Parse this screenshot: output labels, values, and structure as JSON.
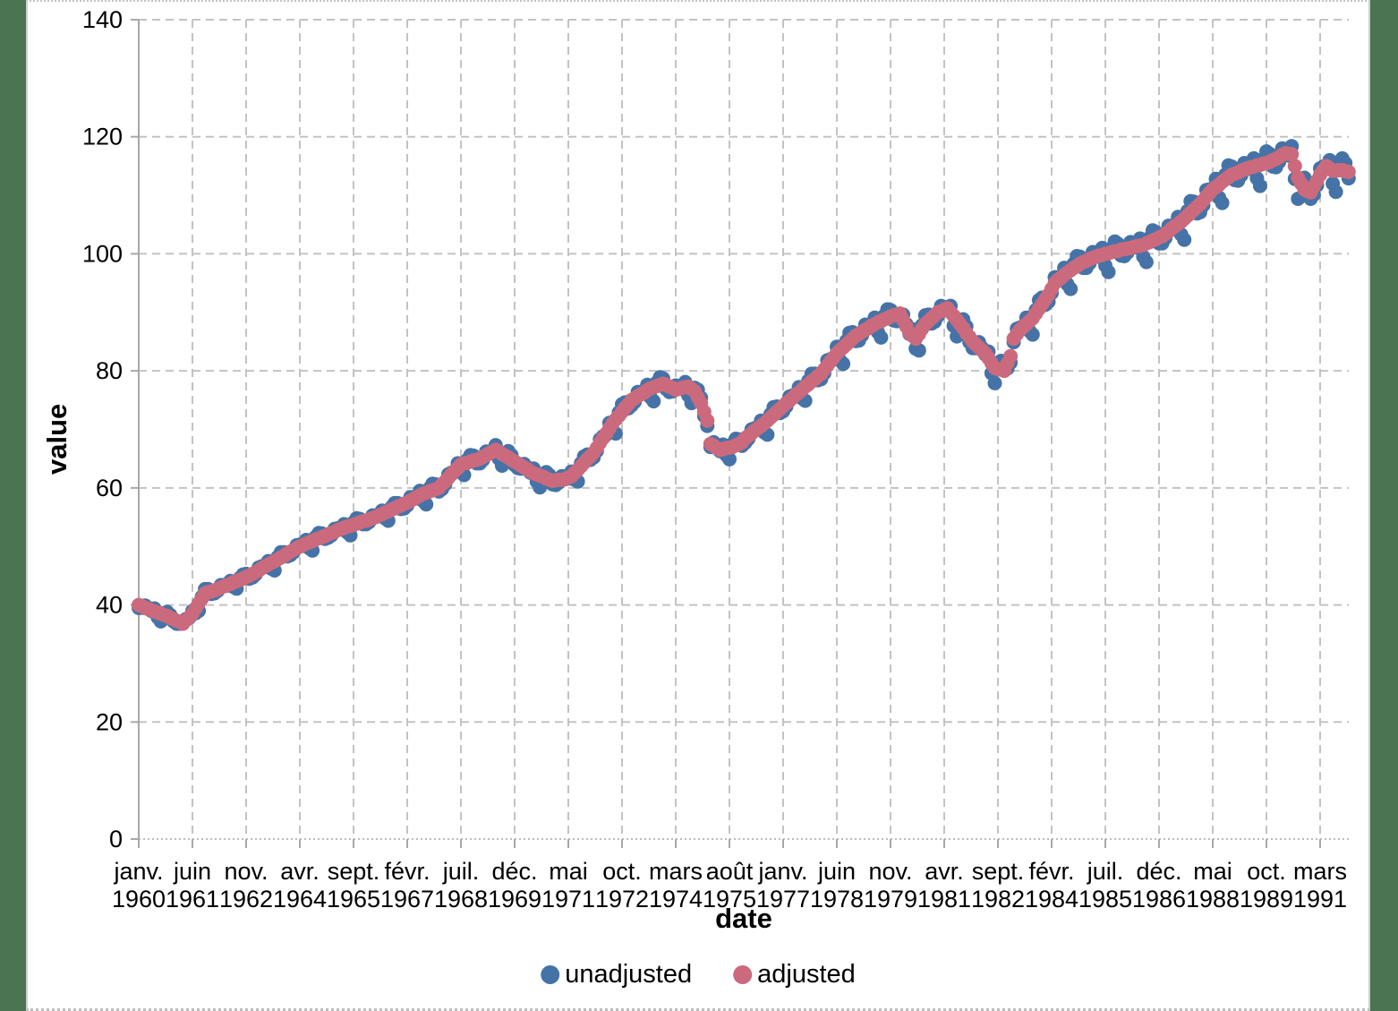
{
  "axes": {
    "ylabel": "value",
    "xlabel": "date"
  },
  "legend": {
    "items": [
      {
        "label": "unadjusted",
        "color": "#4573a7"
      },
      {
        "label": "adjusted",
        "color": "#ca6a7c"
      }
    ]
  },
  "colors": {
    "background_margin": "#4a7452",
    "panel": "#ffffff",
    "gridline": "#c3c3c3",
    "axis_line": "#a8a8a8",
    "unadjusted": "#4573a7",
    "adjusted": "#ca6a7c"
  },
  "chart_data": {
    "type": "scatter",
    "title": "",
    "xlabel": "date",
    "ylabel": "value",
    "x_start": "1960-01",
    "x_end": "1991-12",
    "x_frequency": "monthly",
    "x_tick_interval_months": 17,
    "x_tick_labels": [
      [
        "janv.",
        "1960"
      ],
      [
        "juin",
        "1961"
      ],
      [
        "nov.",
        "1962"
      ],
      [
        "avr.",
        "1964"
      ],
      [
        "sept.",
        "1965"
      ],
      [
        "févr.",
        "1967"
      ],
      [
        "juil.",
        "1968"
      ],
      [
        "déc.",
        "1969"
      ],
      [
        "mai",
        "1971"
      ],
      [
        "oct.",
        "1972"
      ],
      [
        "mars",
        "1974"
      ],
      [
        "août",
        "1975"
      ],
      [
        "janv.",
        "1977"
      ],
      [
        "juin",
        "1978"
      ],
      [
        "nov.",
        "1979"
      ],
      [
        "avr.",
        "1981"
      ],
      [
        "sept.",
        "1982"
      ],
      [
        "févr.",
        "1984"
      ],
      [
        "juil.",
        "1985"
      ],
      [
        "déc.",
        "1986"
      ],
      [
        "mai",
        "1988"
      ],
      [
        "oct.",
        "1989"
      ],
      [
        "mars",
        "1991"
      ]
    ],
    "ylim": [
      0,
      140
    ],
    "y_ticks": [
      0,
      20,
      40,
      60,
      80,
      100,
      120,
      140
    ],
    "grid": true,
    "legend_position": "bottom",
    "marker": "circle",
    "series": [
      {
        "name": "unadjusted",
        "color": "#4573a7",
        "values": [
          39.5,
          39.5,
          39.9,
          39.5,
          39.0,
          39.4,
          37.9,
          37.2,
          38.6,
          38.8,
          38.3,
          37.2,
          36.8,
          36.8,
          37.2,
          37.6,
          37.8,
          39.0,
          38.6,
          39.0,
          41.4,
          42.7,
          42.7,
          41.9,
          42.0,
          42.4,
          43.4,
          43.4,
          43.3,
          44.1,
          43.1,
          42.8,
          44.6,
          45.2,
          45.3,
          44.5,
          44.7,
          45.2,
          46.4,
          46.6,
          46.5,
          47.5,
          46.2,
          45.9,
          48.2,
          49.0,
          49.0,
          48.3,
          48.5,
          49.0,
          50.2,
          50.3,
          50.1,
          51.1,
          49.7,
          49.3,
          51.6,
          52.3,
          52.2,
          51.3,
          51.5,
          51.9,
          53.0,
          53.1,
          52.9,
          53.8,
          52.4,
          51.9,
          54.1,
          54.8,
          54.7,
          53.8,
          53.8,
          54.2,
          55.3,
          55.3,
          55.2,
          56.1,
          54.8,
          54.4,
          56.7,
          57.4,
          57.4,
          56.4,
          56.5,
          57.0,
          58.4,
          58.4,
          58.2,
          59.5,
          57.8,
          57.2,
          59.9,
          60.7,
          60.6,
          59.4,
          59.8,
          60.6,
          62.3,
          62.6,
          62.7,
          64.2,
          62.8,
          62.2,
          64.8,
          65.6,
          65.5,
          64.2,
          64.2,
          64.8,
          66.2,
          66.2,
          66.0,
          67.3,
          65.0,
          63.8,
          66.0,
          66.3,
          65.6,
          63.9,
          63.4,
          63.3,
          64.1,
          63.5,
          62.6,
          63.3,
          61.1,
          60.1,
          62.4,
          62.7,
          62.2,
          60.6,
          60.5,
          60.9,
          62.0,
          61.8,
          61.6,
          62.8,
          61.4,
          61.1,
          64.2,
          65.4,
          65.7,
          64.8,
          65.2,
          66.3,
          68.3,
          68.8,
          69.1,
          71.1,
          69.5,
          69.3,
          72.9,
          74.3,
          74.6,
          73.6,
          74.1,
          74.7,
          76.4,
          76.4,
          76.1,
          77.6,
          75.5,
          74.8,
          78.0,
          78.9,
          78.7,
          76.9,
          76.4,
          76.5,
          77.5,
          77.3,
          76.9,
          78.1,
          75.8,
          74.5,
          77.1,
          76.8,
          75.4,
          72.3,
          70.6,
          67.0,
          67.8,
          67.1,
          66.3,
          67.4,
          65.6,
          64.9,
          67.5,
          68.4,
          68.3,
          67.2,
          67.7,
          68.4,
          70.0,
          70.2,
          70.0,
          71.5,
          69.5,
          69.1,
          72.6,
          73.8,
          73.9,
          72.8,
          73.1,
          73.9,
          75.6,
          75.8,
          75.7,
          77.2,
          75.3,
          74.9,
          78.3,
          79.5,
          79.5,
          78.4,
          78.6,
          79.6,
          81.8,
          82.0,
          82.1,
          84.1,
          81.8,
          81.2,
          85.1,
          86.5,
          86.6,
          85.1,
          85.2,
          86.1,
          87.9,
          87.7,
          87.5,
          89.1,
          86.6,
          85.7,
          89.4,
          90.5,
          90.4,
          88.6,
          88.5,
          89.2,
          89.6,
          88.0,
          86.3,
          87.1,
          83.8,
          83.5,
          87.8,
          89.5,
          89.6,
          88.1,
          88.4,
          89.4,
          91.1,
          90.9,
          90.5,
          91.1,
          87.7,
          85.9,
          88.6,
          88.8,
          87.6,
          84.9,
          83.9,
          83.9,
          84.9,
          83.9,
          82.8,
          83.3,
          79.6,
          77.9,
          80.9,
          81.7,
          81.1,
          80.4,
          81.4,
          84.9,
          87.2,
          87.4,
          87.3,
          89.1,
          86.8,
          86.2,
          90.4,
          92.1,
          92.5,
          91.3,
          91.8,
          93.3,
          96.0,
          96.0,
          95.7,
          97.6,
          94.8,
          94.0,
          98.3,
          99.6,
          99.5,
          97.6,
          97.6,
          98.4,
          100.3,
          100.0,
          99.5,
          101.0,
          98.0,
          96.9,
          101.0,
          102.1,
          101.7,
          99.7,
          99.6,
          100.2,
          102.0,
          101.7,
          101.1,
          102.6,
          99.5,
          98.6,
          102.7,
          104.0,
          103.7,
          101.8,
          101.8,
          102.7,
          104.8,
          104.8,
          104.5,
          106.3,
          103.3,
          102.4,
          107.3,
          109.0,
          108.9,
          106.9,
          107.1,
          108.3,
          110.9,
          111.0,
          110.7,
          112.8,
          109.6,
          108.7,
          113.5,
          115.1,
          114.9,
          112.6,
          112.5,
          113.4,
          115.5,
          115.2,
          114.5,
          116.3,
          112.9,
          111.6,
          116.2,
          117.5,
          117.1,
          114.9,
          114.8,
          115.7,
          118.0,
          117.8,
          116.8,
          118.4,
          112.8,
          109.4,
          112.8,
          113.0,
          112.1,
          109.4,
          110.1,
          111.7,
          114.6,
          114.9,
          114.7,
          116.0,
          112.0,
          110.6,
          115.1,
          116.3,
          115.5,
          112.9
        ]
      },
      {
        "name": "adjusted",
        "color": "#ca6a7c",
        "values": [
          40.0,
          39.8,
          39.5,
          39.3,
          39.1,
          38.9,
          38.7,
          38.5,
          38.3,
          38.1,
          37.8,
          37.6,
          37.3,
          37.1,
          36.8,
          37.4,
          37.9,
          38.5,
          39.4,
          40.3,
          41.1,
          42.0,
          42.2,
          42.3,
          42.5,
          42.7,
          43.0,
          43.2,
          43.4,
          43.6,
          43.9,
          44.1,
          44.3,
          44.5,
          44.8,
          45.0,
          45.3,
          45.6,
          45.9,
          46.3,
          46.6,
          46.9,
          47.2,
          47.5,
          47.8,
          48.1,
          48.4,
          48.8,
          49.1,
          49.4,
          49.7,
          50.0,
          50.2,
          50.5,
          50.7,
          50.9,
          51.2,
          51.4,
          51.6,
          51.8,
          52.1,
          52.3,
          52.5,
          52.8,
          53.0,
          53.2,
          53.4,
          53.5,
          53.7,
          53.9,
          54.1,
          54.3,
          54.4,
          54.6,
          54.8,
          55.0,
          55.3,
          55.5,
          55.8,
          56.0,
          56.3,
          56.5,
          56.8,
          57.0,
          57.3,
          57.5,
          57.8,
          58.1,
          58.4,
          58.7,
          59.0,
          59.2,
          59.4,
          59.6,
          59.8,
          60.0,
          60.6,
          61.1,
          61.7,
          62.3,
          62.9,
          63.4,
          64.0,
          64.2,
          64.3,
          64.5,
          64.7,
          64.8,
          65.0,
          65.3,
          65.6,
          65.9,
          66.2,
          66.5,
          66.2,
          65.8,
          65.5,
          65.2,
          64.8,
          64.5,
          64.2,
          63.8,
          63.5,
          63.2,
          62.8,
          62.5,
          62.3,
          62.1,
          61.9,
          61.6,
          61.4,
          61.2,
          61.3,
          61.4,
          61.4,
          61.5,
          61.8,
          62.0,
          62.6,
          63.1,
          63.7,
          64.3,
          64.9,
          65.4,
          66.0,
          66.8,
          67.7,
          68.5,
          69.3,
          70.2,
          71.0,
          71.7,
          72.3,
          73.0,
          73.7,
          74.3,
          75.0,
          75.3,
          75.7,
          76.0,
          76.3,
          76.7,
          77.0,
          77.2,
          77.4,
          77.6,
          77.8,
          77.6,
          77.3,
          77.1,
          76.8,
          76.9,
          77.1,
          77.2,
          77.3,
          76.9,
          76.5,
          75.5,
          74.5,
          73.0,
          71.5,
          67.5,
          67.2,
          66.8,
          66.5,
          66.6,
          66.8,
          66.9,
          67.0,
          67.3,
          67.5,
          67.8,
          68.5,
          68.9,
          69.3,
          69.8,
          70.2,
          70.6,
          71.0,
          71.5,
          72.0,
          72.5,
          73.0,
          73.5,
          74.0,
          74.5,
          74.9,
          75.4,
          75.9,
          76.3,
          76.8,
          77.3,
          77.7,
          78.2,
          78.6,
          79.1,
          79.5,
          80.2,
          80.9,
          81.6,
          82.3,
          83.0,
          83.5,
          84.0,
          84.5,
          85.0,
          85.5,
          86.0,
          86.3,
          86.7,
          87.0,
          87.3,
          87.7,
          88.0,
          88.3,
          88.5,
          88.8,
          89.0,
          89.3,
          89.5,
          89.6,
          89.8,
          88.7,
          87.6,
          86.5,
          86.0,
          85.5,
          86.3,
          87.2,
          88.0,
          88.5,
          89.0,
          89.5,
          90.0,
          90.2,
          90.5,
          90.7,
          90.0,
          89.4,
          88.7,
          88.0,
          87.3,
          86.5,
          85.8,
          85.0,
          84.5,
          84.0,
          83.5,
          83.0,
          82.2,
          81.3,
          80.5,
          80.3,
          80.2,
          80.0,
          81.3,
          82.5,
          85.5,
          86.3,
          87.0,
          87.5,
          88.0,
          88.5,
          89.0,
          89.8,
          90.6,
          91.4,
          92.2,
          93.0,
          94.0,
          95.0,
          95.5,
          95.9,
          96.4,
          96.8,
          97.2,
          97.6,
          97.9,
          98.3,
          98.6,
          98.8,
          99.1,
          99.3,
          99.5,
          99.7,
          99.8,
          100.0,
          100.1,
          100.3,
          100.4,
          100.5,
          100.7,
          100.8,
          100.9,
          101.0,
          101.2,
          101.3,
          101.4,
          101.5,
          101.8,
          102.0,
          102.3,
          102.5,
          102.8,
          103.0,
          103.4,
          103.8,
          104.3,
          104.7,
          105.1,
          105.5,
          106.0,
          106.5,
          107.0,
          107.5,
          108.0,
          108.5,
          109.1,
          109.8,
          110.4,
          111.0,
          111.4,
          111.8,
          112.3,
          112.7,
          113.1,
          113.5,
          113.7,
          113.9,
          114.2,
          114.4,
          114.6,
          114.8,
          114.9,
          115.1,
          115.2,
          115.4,
          115.5,
          115.7,
          116.0,
          116.2,
          116.5,
          116.9,
          117.2,
          117.1,
          117.0,
          115.0,
          113.0,
          112.0,
          111.0,
          110.7,
          110.5,
          111.5,
          112.5,
          113.5,
          114.3,
          115.0,
          114.6,
          114.2,
          114.2,
          114.3,
          114.3,
          114.1,
          114.0
        ]
      }
    ]
  }
}
